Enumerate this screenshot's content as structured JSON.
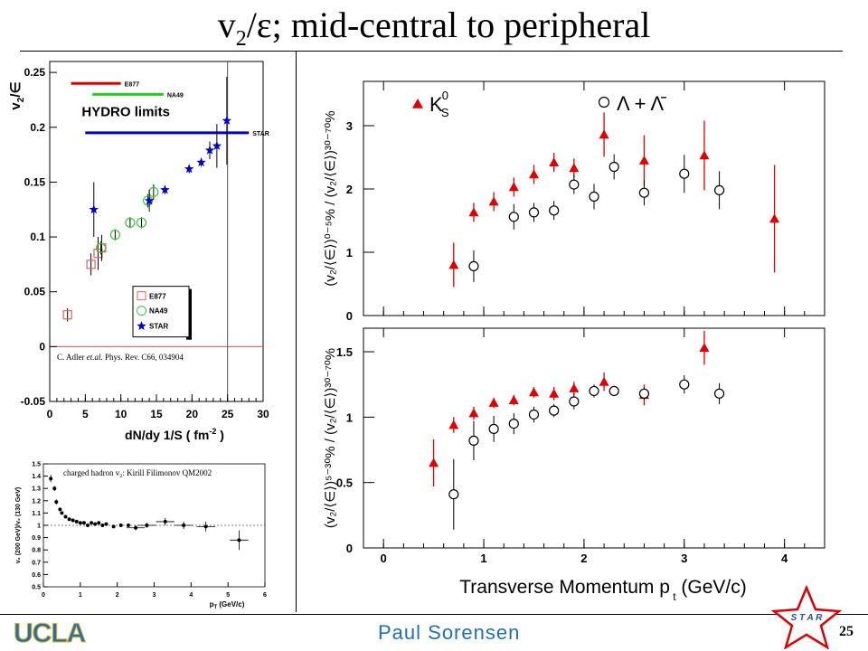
{
  "slide": {
    "title_main": "v",
    "title_sub": "2",
    "title_rest": "/ε; mid-central to peripheral",
    "presenter": "Paul Sorensen",
    "page_number": "25",
    "logo_text": "UCLA",
    "star_logo_text": "S T A R"
  },
  "colors": {
    "presenter": "#1d6fb8",
    "red": "#e00000",
    "blue": "#0000cc",
    "green": "#22cc22"
  },
  "chart_data": [
    {
      "type": "scatter",
      "ylabel_main": "v",
      "ylabel_sub": "2",
      "ylabel_rest": "/∈",
      "xlabel": "dN/dy 1/S ( fm",
      "xlabel_sup": "-2",
      "xlabel_end": " )",
      "xlim": [
        0,
        30
      ],
      "ylim": [
        -0.05,
        0.26
      ],
      "xticks": [
        "0",
        "5",
        "10",
        "15",
        "20",
        "25",
        "30"
      ],
      "yticks": [
        "-0.05",
        "0",
        "0.05",
        "0.1",
        "0.15",
        "0.2",
        "0.25"
      ],
      "hydro_title": "HYDRO  limits",
      "hydro_limits": [
        {
          "name": "E877",
          "y": 0.24,
          "x": [
            3,
            10
          ]
        },
        {
          "name": "NA49",
          "y": 0.23,
          "x": [
            6,
            16
          ]
        },
        {
          "name": "STAR",
          "y": 0.195,
          "x": [
            5,
            28
          ]
        }
      ],
      "vertical_line_x": 25,
      "citation_prefix": "C. Adler ",
      "citation_italic": "et.al.",
      "citation_rest": " Phys. Rev. C66, 034904",
      "legend": [
        "E877",
        "NA49",
        "STAR"
      ],
      "series": [
        {
          "name": "E877",
          "points": [
            [
              2.5,
              0.029,
              0.006
            ],
            [
              5.8,
              0.075,
              0.01
            ],
            [
              6.8,
              0.085,
              0.015
            ],
            [
              7.3,
              0.09,
              0.012
            ]
          ]
        },
        {
          "name": "NA49",
          "points": [
            [
              7.2,
              0.09,
              0.006
            ],
            [
              9.2,
              0.102,
              0.005
            ],
            [
              11.3,
              0.113,
              0.005
            ],
            [
              12.9,
              0.113,
              0.005
            ],
            [
              13.8,
              0.133,
              0.006
            ],
            [
              14.6,
              0.141,
              0.007
            ]
          ]
        },
        {
          "name": "STAR",
          "points": [
            [
              6.2,
              0.125,
              0.025
            ],
            [
              14.0,
              0.133,
              0.01
            ],
            [
              16.2,
              0.143,
              0.004
            ],
            [
              19.6,
              0.162,
              0.004
            ],
            [
              21.3,
              0.168,
              0.004
            ],
            [
              22.5,
              0.179,
              0.008
            ],
            [
              23.5,
              0.183,
              0.02
            ],
            [
              24.9,
              0.206,
              0.04
            ]
          ]
        }
      ]
    },
    {
      "type": "scatter",
      "annotation": "charged hadron v",
      "annotation_sub": "2",
      "annotation_rest": ": Kirill Filimonov QM2002",
      "ylabel": "v₂ (200 GeV)/v₂ (130 GeV)",
      "xlabel": "p",
      "xlabel_sub": "T",
      "xlabel_end": " (GeV/c)",
      "xlim": [
        0,
        6
      ],
      "ylim": [
        0.5,
        1.5
      ],
      "xticks": [
        "0",
        "1",
        "2",
        "3",
        "4",
        "5",
        "6"
      ],
      "yticks": [
        "0.5",
        "0.6",
        "0.7",
        "0.8",
        "0.9",
        "1",
        "1.1",
        "1.2",
        "1.3",
        "1.4",
        "1.5"
      ],
      "points": [
        [
          0.2,
          1.38,
          0.03
        ],
        [
          0.3,
          1.3,
          0.02
        ],
        [
          0.35,
          1.19,
          0.02
        ],
        [
          0.45,
          1.13,
          0.01
        ],
        [
          0.5,
          1.1,
          0.01
        ],
        [
          0.6,
          1.07,
          0.01
        ],
        [
          0.7,
          1.05,
          0.01
        ],
        [
          0.8,
          1.04,
          0.01
        ],
        [
          0.9,
          1.03,
          0.01
        ],
        [
          1.0,
          1.02,
          0.01
        ],
        [
          1.1,
          1.02,
          0.01
        ],
        [
          1.2,
          1.0,
          0.01
        ],
        [
          1.3,
          1.02,
          0.01
        ],
        [
          1.4,
          1.01,
          0.01
        ],
        [
          1.5,
          1.02,
          0.01
        ],
        [
          1.6,
          1.0,
          0.01
        ],
        [
          1.7,
          1.01,
          0.01
        ],
        [
          1.9,
          0.99,
          0.01
        ],
        [
          2.1,
          1.0,
          0.01
        ],
        [
          2.3,
          1.0,
          0.01
        ],
        [
          2.5,
          0.98,
          0.02
        ],
        [
          2.8,
          1.0,
          0.02
        ],
        [
          3.3,
          1.03,
          0.03
        ],
        [
          3.8,
          1.0,
          0.03
        ],
        [
          4.4,
          0.99,
          0.04
        ],
        [
          5.3,
          0.88,
          0.08
        ]
      ]
    },
    {
      "type": "scatter",
      "ylabel_top": "(v₂/⟨∈⟩)⁰⁻⁵% / (v₂/⟨∈⟩)³⁰⁻⁷⁰%",
      "ylabel_bottom": "(v₂/⟨∈⟩)⁵⁻³⁰% / (v₂/⟨∈⟩)³⁰⁻⁷⁰%",
      "xlabel": "Transverse Momentum p",
      "xlabel_sub": "t",
      "xlabel_end": " (GeV/c)",
      "xlim": [
        -0.2,
        4.4
      ],
      "xticks": [
        "0",
        "1",
        "2",
        "3",
        "4"
      ],
      "legend": [
        {
          "name": "K",
          "sup": "0",
          "sub": "S"
        },
        {
          "name": "Λ + Λ̄"
        }
      ],
      "top_panel": {
        "ylim": [
          0,
          3.7
        ],
        "yticks": [
          "0",
          "1",
          "2",
          "3"
        ],
        "kshort": [
          [
            0.7,
            0.8,
            0.35
          ],
          [
            0.9,
            1.63,
            0.15
          ],
          [
            1.1,
            1.8,
            0.15
          ],
          [
            1.3,
            2.03,
            0.15
          ],
          [
            1.5,
            2.23,
            0.15
          ],
          [
            1.7,
            2.42,
            0.15
          ],
          [
            1.9,
            2.33,
            0.15
          ],
          [
            2.2,
            2.86,
            0.35
          ],
          [
            2.6,
            2.45,
            0.4
          ],
          [
            3.2,
            2.53,
            0.55
          ],
          [
            3.9,
            1.53,
            0.85
          ]
        ],
        "lambda": [
          [
            0.9,
            0.78,
            0.25
          ],
          [
            1.3,
            1.56,
            0.2
          ],
          [
            1.5,
            1.63,
            0.15
          ],
          [
            1.7,
            1.66,
            0.15
          ],
          [
            1.9,
            2.07,
            0.15
          ],
          [
            2.1,
            1.88,
            0.2
          ],
          [
            2.3,
            2.35,
            0.2
          ],
          [
            2.6,
            1.94,
            0.2
          ],
          [
            3.0,
            2.24,
            0.3
          ],
          [
            3.35,
            1.98,
            0.3
          ]
        ]
      },
      "bottom_panel": {
        "ylim": [
          0,
          1.68
        ],
        "yticks": [
          "0",
          "0.5",
          "1",
          "1.5"
        ],
        "kshort": [
          [
            0.5,
            0.65,
            0.18
          ],
          [
            0.7,
            0.94,
            0.06
          ],
          [
            0.9,
            1.03,
            0.05
          ],
          [
            1.1,
            1.11,
            0.04
          ],
          [
            1.3,
            1.13,
            0.04
          ],
          [
            1.5,
            1.19,
            0.04
          ],
          [
            1.7,
            1.18,
            0.05
          ],
          [
            1.9,
            1.22,
            0.05
          ],
          [
            2.2,
            1.27,
            0.07
          ],
          [
            2.6,
            1.17,
            0.08
          ],
          [
            3.2,
            1.53,
            0.13
          ]
        ],
        "lambda": [
          [
            0.7,
            0.41,
            0.27
          ],
          [
            0.9,
            0.82,
            0.15
          ],
          [
            1.1,
            0.91,
            0.1
          ],
          [
            1.3,
            0.95,
            0.08
          ],
          [
            1.5,
            1.02,
            0.06
          ],
          [
            1.7,
            1.05,
            0.05
          ],
          [
            1.9,
            1.12,
            0.06
          ],
          [
            2.1,
            1.2,
            0.05
          ],
          [
            2.3,
            1.2,
            0.04
          ],
          [
            2.6,
            1.18,
            0.05
          ],
          [
            3.0,
            1.25,
            0.07
          ],
          [
            3.35,
            1.18,
            0.08
          ]
        ]
      }
    }
  ]
}
